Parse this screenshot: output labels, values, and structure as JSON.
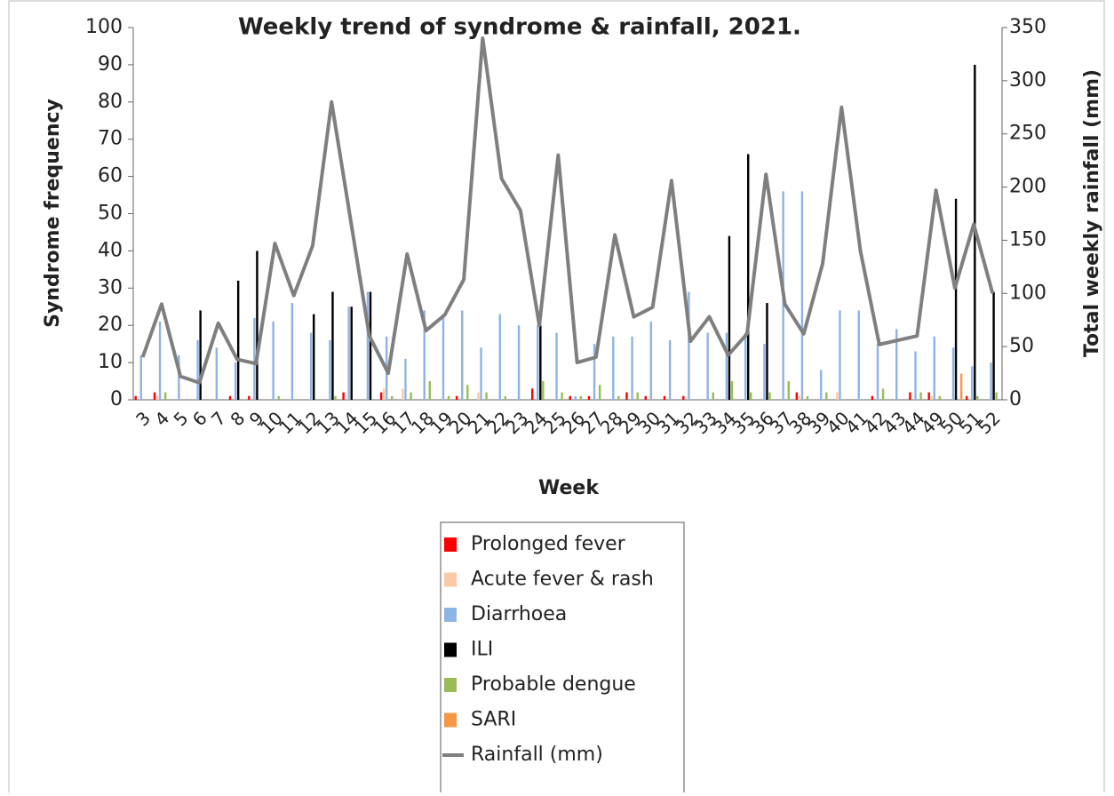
{
  "chart_data": {
    "type": "bar",
    "title": "Weekly trend of syndrome & rainfall, 2021.",
    "x_label": "Week",
    "y_label": "Syndrome frequency",
    "y2_label": "Total weekly rainfall (mm)",
    "categories": [
      "3",
      "4",
      "5",
      "6",
      "7",
      "8",
      "9",
      "10",
      "11",
      "12",
      "13",
      "14",
      "15",
      "16",
      "17",
      "18",
      "19",
      "20",
      "21",
      "22",
      "23",
      "24",
      "25",
      "26",
      "27",
      "28",
      "29",
      "30",
      "31",
      "32",
      "33",
      "34",
      "35",
      "36",
      "37",
      "38",
      "39",
      "40",
      "41",
      "42",
      "43",
      "44",
      "49",
      "50",
      "51",
      "52"
    ],
    "ylim": [
      0,
      100
    ],
    "yticks": [
      0,
      10,
      20,
      30,
      40,
      50,
      60,
      70,
      80,
      90,
      100
    ],
    "y2lim": [
      0,
      350
    ],
    "y2ticks": [
      0,
      50,
      100,
      150,
      200,
      250,
      300,
      350
    ],
    "series": [
      {
        "name": "Prolonged fever",
        "color": "#ff0000",
        "values": [
          1,
          2,
          0,
          0,
          0,
          1,
          1,
          0,
          0,
          0,
          0,
          2,
          0,
          2,
          0,
          0,
          0,
          1,
          0,
          0,
          0,
          3,
          0,
          1,
          1,
          0,
          2,
          1,
          1,
          1,
          0,
          0,
          0,
          0,
          0,
          2,
          0,
          0,
          0,
          1,
          0,
          2,
          2,
          0,
          1,
          0
        ]
      },
      {
        "name": "Acute fever & rash",
        "color": "#fcc9a6",
        "values": [
          0,
          1,
          0,
          0,
          0,
          0,
          0,
          0,
          0,
          0,
          0,
          0,
          0,
          3,
          3,
          0,
          0,
          0,
          2,
          0,
          0,
          0,
          0,
          0,
          0,
          0,
          0,
          0,
          0,
          0,
          0,
          0,
          0,
          0,
          0,
          1,
          0,
          2,
          0,
          0,
          0,
          0,
          1,
          0,
          0,
          0
        ]
      },
      {
        "name": "Diarrhoea",
        "color": "#8eb4e3",
        "values": [
          12,
          21,
          12,
          16,
          14,
          10,
          22,
          21,
          26,
          18,
          16,
          25,
          29,
          17,
          11,
          24,
          23,
          24,
          14,
          23,
          20,
          20,
          18,
          1,
          15,
          17,
          17,
          21,
          16,
          29,
          18,
          18,
          18,
          15,
          56,
          56,
          8,
          24,
          24,
          15,
          19,
          13,
          17,
          14,
          9,
          10
        ]
      },
      {
        "name": "ILI",
        "color": "#000000",
        "values": [
          0,
          0,
          0,
          24,
          0,
          32,
          40,
          0,
          0,
          23,
          29,
          25,
          29,
          0,
          0,
          0,
          0,
          0,
          0,
          0,
          0,
          20,
          0,
          0,
          0,
          0,
          0,
          0,
          0,
          0,
          0,
          44,
          66,
          26,
          0,
          0,
          0,
          0,
          0,
          0,
          0,
          0,
          0,
          54,
          90,
          29
        ]
      },
      {
        "name": "Probable dengue",
        "color": "#9bbb59",
        "values": [
          0,
          2,
          0,
          0,
          0,
          0,
          0,
          1,
          0,
          0,
          1,
          0,
          0,
          1,
          2,
          5,
          1,
          4,
          2,
          1,
          0,
          5,
          2,
          1,
          4,
          1,
          2,
          0,
          0,
          0,
          2,
          5,
          2,
          2,
          5,
          1,
          2,
          0,
          0,
          3,
          0,
          2,
          1,
          0,
          1,
          2
        ]
      },
      {
        "name": "SARI",
        "color": "#f79646",
        "values": [
          0,
          0,
          0,
          0,
          0,
          0,
          0,
          0,
          0,
          0,
          0,
          0,
          0,
          0,
          0,
          0,
          0,
          0,
          0,
          0,
          0,
          0,
          0,
          0,
          0,
          0,
          0,
          0,
          0,
          0,
          0,
          0,
          0,
          0,
          0,
          0,
          0,
          0,
          0,
          0,
          0,
          0,
          0,
          7,
          0,
          0
        ]
      },
      {
        "name": "Rainfall (mm)",
        "color": "#7f7f7f",
        "type": "line",
        "axis": "y2",
        "values": [
          40,
          90,
          22,
          16,
          72,
          38,
          34,
          147,
          98,
          145,
          280,
          170,
          60,
          25,
          137,
          65,
          80,
          113,
          340,
          208,
          178,
          70,
          230,
          35,
          40,
          155,
          78,
          87,
          206,
          55,
          78,
          42,
          62,
          212,
          90,
          62,
          128,
          275,
          140,
          52,
          56,
          60,
          197,
          105,
          165,
          100
        ]
      }
    ]
  }
}
